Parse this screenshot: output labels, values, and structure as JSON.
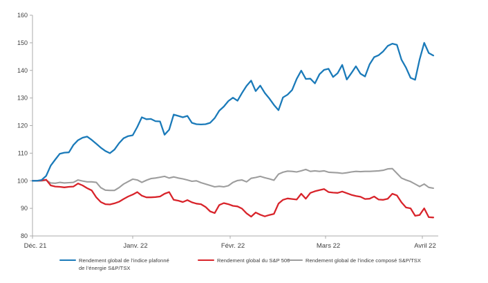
{
  "chart_data": {
    "type": "line",
    "title": "",
    "x_tick_labels": [
      "Déc. 21",
      "Janv. 22",
      "Févr. 22",
      "Mars 22",
      "Avril 22"
    ],
    "y_tick_labels": [
      160,
      150,
      140,
      130,
      120,
      110,
      100,
      90,
      80
    ],
    "ylim": [
      80,
      160
    ],
    "x_range_days": 89,
    "grid": "off",
    "legend_position": "bottom",
    "axis_color": "#ababab",
    "tick_text_color": "#3f3f3f",
    "series": [
      {
        "name": "Rendement global de l’indice plafonné de l’énergie S&P/TSX",
        "color": "#1a7ab9",
        "width": 2.3,
        "values": [
          100,
          100,
          100.3,
          101.8,
          105.5,
          107.7,
          109.8,
          110.2,
          110.3,
          113,
          114.7,
          115.6,
          116,
          114.8,
          113.4,
          112,
          110.8,
          110,
          111.3,
          113.6,
          115.4,
          116.2,
          116.5,
          119.5,
          123,
          122.3,
          122.4,
          121.6,
          121.5,
          116.7,
          118.5,
          124,
          123.5,
          123,
          123.5,
          121,
          120.5,
          120.4,
          120.5,
          121,
          122.7,
          125.4,
          126.9,
          128.9,
          130.1,
          129,
          131.8,
          134.4,
          136.3,
          132.5,
          134.5,
          131.8,
          129.8,
          127.5,
          125.6,
          130.2,
          131.2,
          132.9,
          136.9,
          139.9,
          136.9,
          137,
          135.3,
          138.6,
          140.2,
          140.6,
          137.6,
          139,
          142,
          136.7,
          139,
          141.5,
          138.8,
          137.8,
          142.2,
          144.8,
          145.5,
          146.9,
          148.9,
          149.7,
          149.3,
          143.9,
          141,
          137.3,
          136.6,
          144,
          150,
          146.3,
          145.4
        ]
      },
      {
        "name": "Rendement global du S&P 500",
        "color": "#d8232a",
        "width": 2.3,
        "values": [
          100,
          100,
          100.1,
          100.4,
          98.3,
          97.9,
          97.8,
          97.6,
          97.8,
          97.9,
          99,
          98.3,
          97.3,
          96.5,
          94,
          92.3,
          91.5,
          91.4,
          91.8,
          92.4,
          93.4,
          94.3,
          95,
          95.9,
          94.6,
          94,
          94,
          94.1,
          94.3,
          95.3,
          95.9,
          93.1,
          92.8,
          92.3,
          93,
          92.2,
          91.7,
          91.5,
          90.5,
          88.9,
          88.3,
          91.2,
          91.9,
          91.5,
          90.9,
          90.7,
          89.9,
          88.2,
          87,
          88.5,
          87.7,
          87.1,
          87.6,
          88,
          91.7,
          93.1,
          93.6,
          93.4,
          93.2,
          95.3,
          93.5,
          95.6,
          96.2,
          96.6,
          97,
          95.9,
          95.7,
          95.6,
          96.1,
          95.5,
          94.9,
          94.5,
          94.2,
          93.4,
          93.5,
          94.3,
          93.2,
          93.1,
          93.5,
          95.3,
          94.7,
          92.2,
          90.3,
          90,
          87.3,
          87.6,
          90,
          86.8,
          86.7
        ]
      },
      {
        "name": "Rendement global de l’indice composé S&P/TSX",
        "color": "#9d9d9d",
        "width": 2.1,
        "values": [
          100,
          100,
          100,
          100.2,
          99.2,
          99.1,
          99.4,
          99.2,
          99.3,
          99.4,
          100.3,
          99.9,
          99.6,
          99.6,
          99.4,
          97.5,
          96.6,
          96.5,
          96.5,
          97.5,
          98.8,
          99.7,
          100.6,
          100.3,
          99.4,
          100.2,
          100.8,
          101,
          101.3,
          101.6,
          101,
          101.4,
          101,
          100.7,
          100.3,
          99.8,
          100,
          99.3,
          98.8,
          98.3,
          97.8,
          98,
          97.8,
          98.2,
          99.4,
          100.1,
          100.3,
          99.6,
          100.9,
          101.2,
          101.6,
          101.1,
          100.7,
          100.2,
          102.4,
          103.1,
          103.5,
          103.4,
          103.2,
          103.6,
          104.1,
          103.4,
          103.6,
          103.4,
          103.6,
          103.1,
          103,
          102.9,
          102.7,
          102.9,
          103.2,
          103.4,
          103.3,
          103.4,
          103.4,
          103.5,
          103.6,
          103.8,
          104.3,
          104.4,
          102.7,
          101,
          100.3,
          99.7,
          98.8,
          97.9,
          98.8,
          97.6,
          97.3
        ]
      }
    ]
  }
}
